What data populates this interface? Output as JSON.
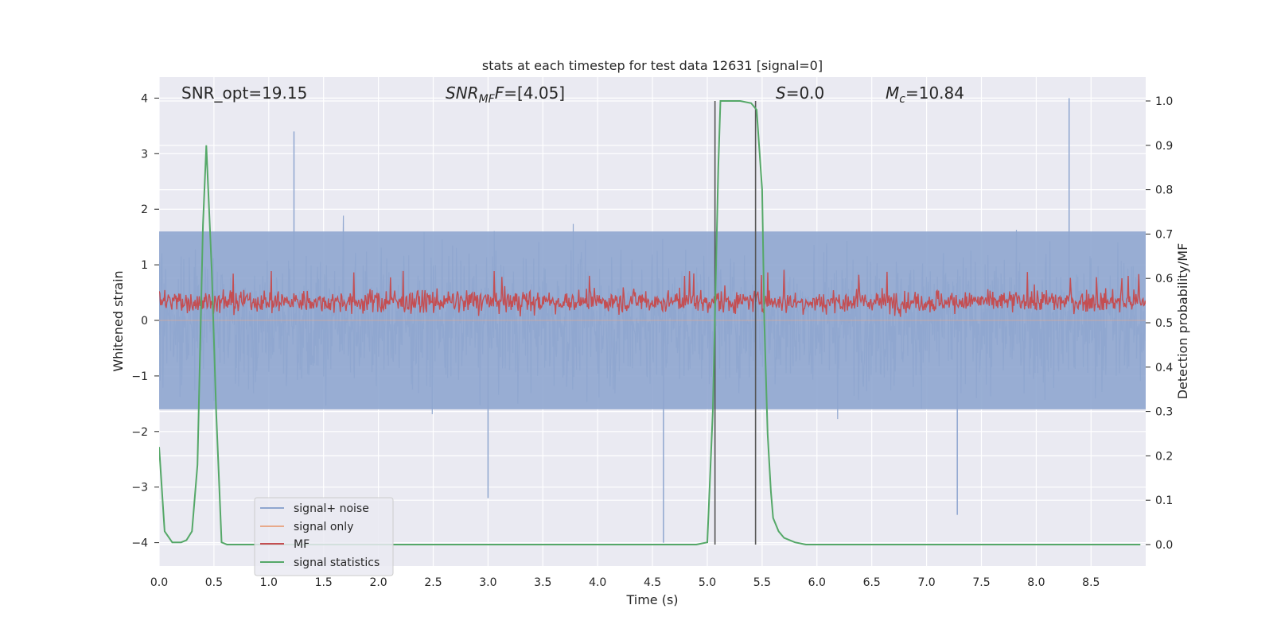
{
  "chart_data": {
    "type": "line",
    "title": "stats at each timestep for test data 12631 [signal=0]",
    "xlabel": "Time (s)",
    "ylabel": "Whitened strain",
    "ylabel_right": "Detection probability/MF",
    "xlim": [
      0,
      9.0
    ],
    "ylim": [
      -4.4,
      4.4
    ],
    "ylim_right": [
      -0.05,
      1.05
    ],
    "x_ticks": [
      "0.0",
      "0.5",
      "1.0",
      "1.5",
      "2.0",
      "2.5",
      "3.0",
      "3.5",
      "4.0",
      "4.5",
      "5.0",
      "5.5",
      "6.0",
      "6.5",
      "7.0",
      "7.5",
      "8.0",
      "8.5"
    ],
    "y_ticks": [
      "4",
      "3",
      "2",
      "1",
      "0",
      "−1",
      "−2",
      "−3",
      "−4"
    ],
    "y_right_ticks": [
      "1.0",
      "0.9",
      "0.8",
      "0.7",
      "0.6",
      "0.5",
      "0.4",
      "0.3",
      "0.2",
      "0.1",
      "0.0"
    ],
    "grid": true,
    "legend_position": "lower-left",
    "annotations": {
      "snr_opt": "SNR_opt=19.15",
      "snr_mf_main": "SNR",
      "snr_mf_sub": "MF",
      "snr_mf_rest": "=[4.05]",
      "s_main": "S",
      "s_rest": "=0.0",
      "mc_main": "M",
      "mc_sub": "c",
      "mc_rest": "=10.84"
    },
    "series": [
      {
        "name": "signal+ noise",
        "color": "#8fa6cf",
        "kind": "noise",
        "range_core": [
          -1.6,
          1.6
        ],
        "peaks": [
          [
            1.23,
            3.4
          ],
          [
            3.0,
            -3.2
          ],
          [
            4.6,
            -4.0
          ],
          [
            7.28,
            -3.5
          ],
          [
            8.3,
            4.0
          ]
        ]
      },
      {
        "name": "signal only",
        "color": "#e8a98a",
        "kind": "flat",
        "value": 0
      },
      {
        "name": "MF",
        "color": "#c44e52",
        "kind": "mf",
        "axis": "right",
        "range": [
          0.5,
          0.62
        ]
      },
      {
        "name": "signal statistics",
        "color": "#55a868",
        "axis": "right",
        "x": [
          0.0,
          0.05,
          0.12,
          0.2,
          0.25,
          0.3,
          0.35,
          0.4,
          0.43,
          0.48,
          0.52,
          0.57,
          0.62,
          1.0,
          2.0,
          3.0,
          4.0,
          4.5,
          4.9,
          5.0,
          5.05,
          5.1,
          5.12,
          5.2,
          5.3,
          5.4,
          5.45,
          5.5,
          5.52,
          5.55,
          5.58,
          5.6,
          5.65,
          5.7,
          5.8,
          5.9,
          6.0,
          7.0,
          8.0,
          8.95
        ],
        "y": [
          0.22,
          0.03,
          0.005,
          0.005,
          0.01,
          0.03,
          0.18,
          0.72,
          0.9,
          0.62,
          0.3,
          0.005,
          0.0,
          0.0,
          0.0,
          0.0,
          0.0,
          0.0,
          0.0,
          0.005,
          0.3,
          0.85,
          1.0,
          1.0,
          1.0,
          0.995,
          0.98,
          0.8,
          0.5,
          0.25,
          0.12,
          0.06,
          0.03,
          0.015,
          0.005,
          0.0,
          0.0,
          0.0,
          0.0,
          0.0
        ]
      }
    ],
    "vertical_markers": [
      5.07,
      5.44
    ]
  }
}
